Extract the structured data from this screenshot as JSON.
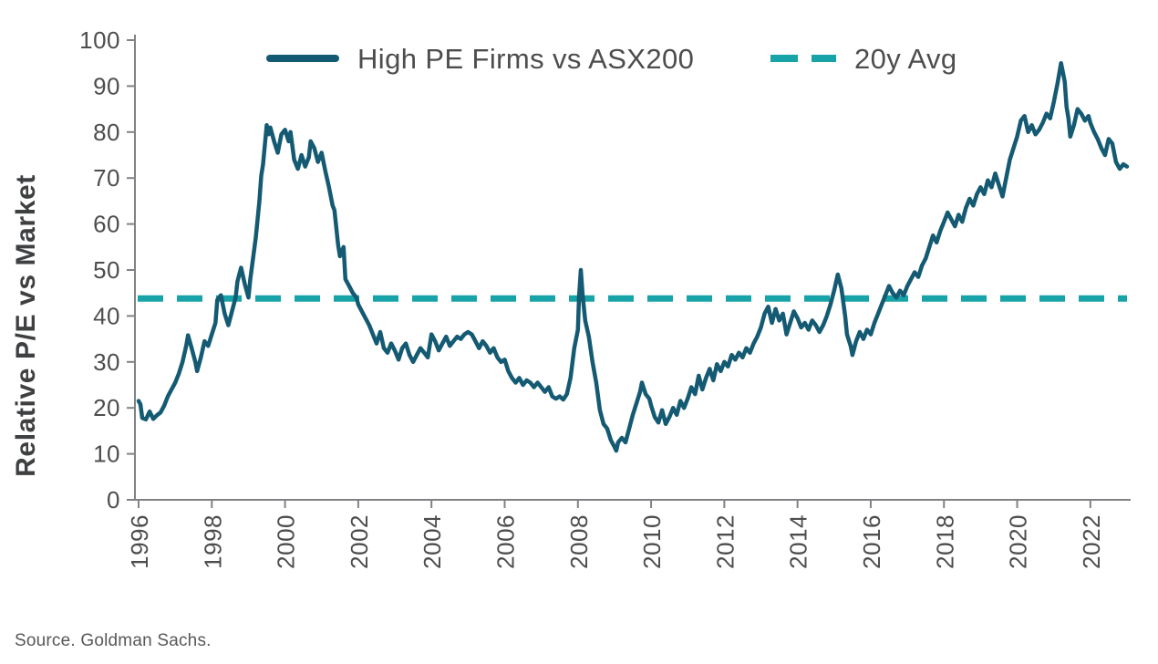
{
  "chart_data": {
    "type": "line",
    "title": "",
    "xlabel": "",
    "ylabel": "Relative P/E vs Market",
    "source": "Source. Goldman Sachs.",
    "ylim": [
      0,
      100
    ],
    "xlim": [
      1995.9,
      2023.1
    ],
    "yticks": [
      0,
      10,
      20,
      30,
      40,
      50,
      60,
      70,
      80,
      90,
      100
    ],
    "xticks": [
      1996,
      1998,
      2000,
      2002,
      2004,
      2006,
      2008,
      2010,
      2012,
      2014,
      2016,
      2018,
      2020,
      2022
    ],
    "grid": false,
    "legend_position": "top-center",
    "colors": {
      "axis": "#808285",
      "tick_text": "#4d4d4f",
      "legend_text": "#4d4d4f",
      "axis_label": "#3f4042",
      "source_text": "#58585a",
      "background": "#ffffff"
    },
    "series": [
      {
        "name": "High PE Firms vs ASX200",
        "style": "solid",
        "color": "#145a73",
        "points": [
          [
            1996.0,
            21.5
          ],
          [
            1996.05,
            20.8
          ],
          [
            1996.1,
            17.8
          ],
          [
            1996.2,
            17.5
          ],
          [
            1996.3,
            19.2
          ],
          [
            1996.4,
            17.6
          ],
          [
            1996.5,
            18.4
          ],
          [
            1996.6,
            19.0
          ],
          [
            1996.7,
            20.5
          ],
          [
            1996.8,
            22.5
          ],
          [
            1996.9,
            24.0
          ],
          [
            1997.0,
            25.5
          ],
          [
            1997.1,
            27.5
          ],
          [
            1997.2,
            30.0
          ],
          [
            1997.3,
            33.5
          ],
          [
            1997.35,
            35.8
          ],
          [
            1997.45,
            33.0
          ],
          [
            1997.55,
            30.0
          ],
          [
            1997.6,
            28.0
          ],
          [
            1997.7,
            31.0
          ],
          [
            1997.8,
            34.5
          ],
          [
            1997.9,
            33.5
          ],
          [
            1998.0,
            36.0
          ],
          [
            1998.1,
            38.5
          ],
          [
            1998.15,
            43.5
          ],
          [
            1998.25,
            44.5
          ],
          [
            1998.35,
            40.5
          ],
          [
            1998.45,
            38.0
          ],
          [
            1998.55,
            41.0
          ],
          [
            1998.65,
            44.0
          ],
          [
            1998.7,
            47.5
          ],
          [
            1998.8,
            50.5
          ],
          [
            1998.9,
            47.0
          ],
          [
            1999.0,
            44.0
          ],
          [
            1999.05,
            48.0
          ],
          [
            1999.1,
            51.0
          ],
          [
            1999.2,
            57.0
          ],
          [
            1999.3,
            65.0
          ],
          [
            1999.35,
            70.5
          ],
          [
            1999.4,
            73.0
          ],
          [
            1999.5,
            81.5
          ],
          [
            1999.55,
            79.5
          ],
          [
            1999.6,
            81.0
          ],
          [
            1999.7,
            78.0
          ],
          [
            1999.8,
            75.5
          ],
          [
            1999.9,
            79.5
          ],
          [
            2000.0,
            80.5
          ],
          [
            2000.1,
            78.0
          ],
          [
            2000.15,
            80.0
          ],
          [
            2000.25,
            74.0
          ],
          [
            2000.35,
            72.0
          ],
          [
            2000.45,
            75.0
          ],
          [
            2000.55,
            72.5
          ],
          [
            2000.65,
            74.5
          ],
          [
            2000.7,
            78.0
          ],
          [
            2000.8,
            76.5
          ],
          [
            2000.9,
            73.5
          ],
          [
            2001.0,
            75.5
          ],
          [
            2001.1,
            71.5
          ],
          [
            2001.2,
            68.0
          ],
          [
            2001.3,
            64.0
          ],
          [
            2001.35,
            63.0
          ],
          [
            2001.45,
            55.5
          ],
          [
            2001.5,
            53.0
          ],
          [
            2001.6,
            55.0
          ],
          [
            2001.65,
            48.0
          ],
          [
            2001.75,
            46.5
          ],
          [
            2001.85,
            45.0
          ],
          [
            2001.95,
            44.0
          ],
          [
            2002.0,
            42.5
          ],
          [
            2002.1,
            41.0
          ],
          [
            2002.2,
            39.5
          ],
          [
            2002.3,
            38.0
          ],
          [
            2002.4,
            36.0
          ],
          [
            2002.5,
            34.0
          ],
          [
            2002.6,
            36.5
          ],
          [
            2002.7,
            33.0
          ],
          [
            2002.8,
            32.0
          ],
          [
            2002.9,
            34.0
          ],
          [
            2003.0,
            32.5
          ],
          [
            2003.1,
            30.5
          ],
          [
            2003.2,
            33.0
          ],
          [
            2003.3,
            34.0
          ],
          [
            2003.4,
            31.5
          ],
          [
            2003.5,
            30.0
          ],
          [
            2003.6,
            31.5
          ],
          [
            2003.7,
            33.0
          ],
          [
            2003.8,
            32.0
          ],
          [
            2003.9,
            31.0
          ],
          [
            2004.0,
            36.0
          ],
          [
            2004.1,
            34.5
          ],
          [
            2004.2,
            32.5
          ],
          [
            2004.3,
            34.0
          ],
          [
            2004.4,
            35.5
          ],
          [
            2004.5,
            33.5
          ],
          [
            2004.6,
            34.5
          ],
          [
            2004.7,
            35.5
          ],
          [
            2004.8,
            35.0
          ],
          [
            2004.9,
            36.0
          ],
          [
            2005.0,
            36.5
          ],
          [
            2005.1,
            36.0
          ],
          [
            2005.2,
            34.5
          ],
          [
            2005.3,
            33.0
          ],
          [
            2005.4,
            34.5
          ],
          [
            2005.5,
            33.5
          ],
          [
            2005.6,
            32.0
          ],
          [
            2005.7,
            33.0
          ],
          [
            2005.8,
            31.0
          ],
          [
            2005.9,
            30.0
          ],
          [
            2006.0,
            30.5
          ],
          [
            2006.1,
            28.0
          ],
          [
            2006.2,
            26.5
          ],
          [
            2006.3,
            25.5
          ],
          [
            2006.4,
            26.5
          ],
          [
            2006.5,
            25.0
          ],
          [
            2006.6,
            26.0
          ],
          [
            2006.7,
            25.5
          ],
          [
            2006.8,
            24.5
          ],
          [
            2006.9,
            25.5
          ],
          [
            2007.0,
            24.5
          ],
          [
            2007.1,
            23.5
          ],
          [
            2007.2,
            24.5
          ],
          [
            2007.3,
            22.5
          ],
          [
            2007.4,
            22.0
          ],
          [
            2007.5,
            22.5
          ],
          [
            2007.6,
            21.8
          ],
          [
            2007.7,
            23.0
          ],
          [
            2007.8,
            26.5
          ],
          [
            2007.9,
            33.0
          ],
          [
            2008.0,
            37.0
          ],
          [
            2008.03,
            44.0
          ],
          [
            2008.08,
            50.0
          ],
          [
            2008.13,
            44.5
          ],
          [
            2008.2,
            39.0
          ],
          [
            2008.3,
            35.5
          ],
          [
            2008.4,
            30.0
          ],
          [
            2008.5,
            25.5
          ],
          [
            2008.6,
            19.5
          ],
          [
            2008.7,
            16.5
          ],
          [
            2008.8,
            15.5
          ],
          [
            2008.9,
            13.0
          ],
          [
            2009.0,
            11.5
          ],
          [
            2009.05,
            10.7
          ],
          [
            2009.1,
            12.5
          ],
          [
            2009.2,
            13.5
          ],
          [
            2009.3,
            12.5
          ],
          [
            2009.4,
            15.5
          ],
          [
            2009.5,
            18.5
          ],
          [
            2009.6,
            21.0
          ],
          [
            2009.7,
            23.5
          ],
          [
            2009.75,
            25.5
          ],
          [
            2009.85,
            23.0
          ],
          [
            2009.95,
            22.0
          ],
          [
            2010.0,
            20.5
          ],
          [
            2010.1,
            18.0
          ],
          [
            2010.2,
            16.8
          ],
          [
            2010.3,
            19.5
          ],
          [
            2010.4,
            16.5
          ],
          [
            2010.5,
            18.0
          ],
          [
            2010.6,
            20.0
          ],
          [
            2010.7,
            18.5
          ],
          [
            2010.8,
            21.5
          ],
          [
            2010.9,
            20.0
          ],
          [
            2011.0,
            22.0
          ],
          [
            2011.1,
            24.5
          ],
          [
            2011.2,
            23.0
          ],
          [
            2011.3,
            27.0
          ],
          [
            2011.4,
            24.0
          ],
          [
            2011.5,
            26.5
          ],
          [
            2011.6,
            28.5
          ],
          [
            2011.7,
            26.0
          ],
          [
            2011.8,
            29.5
          ],
          [
            2011.9,
            28.0
          ],
          [
            2012.0,
            30.0
          ],
          [
            2012.1,
            29.0
          ],
          [
            2012.2,
            31.5
          ],
          [
            2012.3,
            30.5
          ],
          [
            2012.4,
            32.0
          ],
          [
            2012.5,
            31.0
          ],
          [
            2012.6,
            33.0
          ],
          [
            2012.7,
            32.0
          ],
          [
            2012.8,
            34.0
          ],
          [
            2012.9,
            35.5
          ],
          [
            2013.0,
            37.5
          ],
          [
            2013.1,
            40.5
          ],
          [
            2013.2,
            42.0
          ],
          [
            2013.3,
            38.5
          ],
          [
            2013.4,
            41.5
          ],
          [
            2013.5,
            39.0
          ],
          [
            2013.6,
            40.5
          ],
          [
            2013.7,
            36.0
          ],
          [
            2013.8,
            38.5
          ],
          [
            2013.9,
            41.0
          ],
          [
            2014.0,
            39.5
          ],
          [
            2014.1,
            37.5
          ],
          [
            2014.2,
            38.5
          ],
          [
            2014.3,
            37.0
          ],
          [
            2014.4,
            39.0
          ],
          [
            2014.5,
            38.0
          ],
          [
            2014.6,
            36.5
          ],
          [
            2014.7,
            38.0
          ],
          [
            2014.8,
            40.0
          ],
          [
            2014.9,
            42.5
          ],
          [
            2015.0,
            45.5
          ],
          [
            2015.1,
            49.0
          ],
          [
            2015.2,
            46.0
          ],
          [
            2015.3,
            40.0
          ],
          [
            2015.35,
            36.0
          ],
          [
            2015.45,
            33.5
          ],
          [
            2015.5,
            31.5
          ],
          [
            2015.6,
            34.5
          ],
          [
            2015.7,
            36.5
          ],
          [
            2015.8,
            35.0
          ],
          [
            2015.9,
            37.0
          ],
          [
            2016.0,
            36.0
          ],
          [
            2016.1,
            38.5
          ],
          [
            2016.2,
            40.5
          ],
          [
            2016.3,
            42.5
          ],
          [
            2016.4,
            44.5
          ],
          [
            2016.5,
            46.5
          ],
          [
            2016.6,
            45.0
          ],
          [
            2016.7,
            44.0
          ],
          [
            2016.8,
            45.5
          ],
          [
            2016.9,
            44.5
          ],
          [
            2017.0,
            46.5
          ],
          [
            2017.1,
            48.0
          ],
          [
            2017.2,
            49.5
          ],
          [
            2017.3,
            48.5
          ],
          [
            2017.4,
            51.0
          ],
          [
            2017.5,
            52.5
          ],
          [
            2017.6,
            55.0
          ],
          [
            2017.7,
            57.5
          ],
          [
            2017.8,
            56.0
          ],
          [
            2017.9,
            58.5
          ],
          [
            2018.0,
            60.5
          ],
          [
            2018.1,
            62.5
          ],
          [
            2018.2,
            61.0
          ],
          [
            2018.3,
            59.5
          ],
          [
            2018.4,
            62.0
          ],
          [
            2018.5,
            60.5
          ],
          [
            2018.6,
            63.5
          ],
          [
            2018.7,
            65.5
          ],
          [
            2018.8,
            64.0
          ],
          [
            2018.9,
            66.5
          ],
          [
            2019.0,
            68.0
          ],
          [
            2019.1,
            66.5
          ],
          [
            2019.2,
            69.5
          ],
          [
            2019.3,
            68.0
          ],
          [
            2019.4,
            71.0
          ],
          [
            2019.5,
            68.5
          ],
          [
            2019.6,
            66.0
          ],
          [
            2019.7,
            70.0
          ],
          [
            2019.8,
            74.0
          ],
          [
            2019.9,
            76.5
          ],
          [
            2020.0,
            79.0
          ],
          [
            2020.1,
            82.5
          ],
          [
            2020.2,
            83.5
          ],
          [
            2020.3,
            80.0
          ],
          [
            2020.4,
            81.5
          ],
          [
            2020.5,
            79.5
          ],
          [
            2020.6,
            80.5
          ],
          [
            2020.7,
            82.0
          ],
          [
            2020.8,
            84.0
          ],
          [
            2020.9,
            83.0
          ],
          [
            2021.0,
            86.5
          ],
          [
            2021.1,
            90.5
          ],
          [
            2021.2,
            95.0
          ],
          [
            2021.3,
            91.0
          ],
          [
            2021.35,
            85.5
          ],
          [
            2021.4,
            83.0
          ],
          [
            2021.45,
            79.0
          ],
          [
            2021.55,
            81.5
          ],
          [
            2021.65,
            85.0
          ],
          [
            2021.75,
            84.0
          ],
          [
            2021.85,
            82.5
          ],
          [
            2021.95,
            83.5
          ],
          [
            2022.0,
            82.0
          ],
          [
            2022.1,
            80.0
          ],
          [
            2022.2,
            78.5
          ],
          [
            2022.3,
            76.5
          ],
          [
            2022.4,
            75.0
          ],
          [
            2022.5,
            78.5
          ],
          [
            2022.6,
            77.5
          ],
          [
            2022.7,
            73.5
          ],
          [
            2022.8,
            72.0
          ],
          [
            2022.9,
            73.0
          ],
          [
            2023.0,
            72.5
          ]
        ]
      },
      {
        "name": "20y Avg",
        "style": "dashed",
        "color": "#17a3a8",
        "value": 43.8
      }
    ]
  }
}
